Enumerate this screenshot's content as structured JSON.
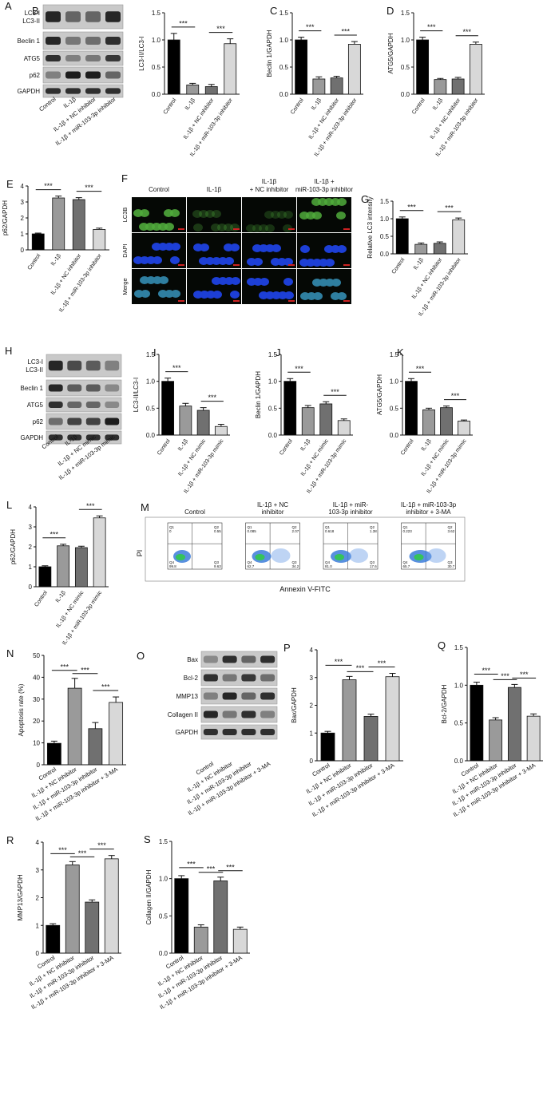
{
  "panels": {
    "A": {
      "label": "A",
      "bands": [
        "LC3-I\nLC3-II",
        "Beclin 1",
        "ATG5",
        "p62",
        "GAPDH"
      ],
      "lanes": [
        "Control",
        "IL-1β",
        "IL-1β + NC inhibitor",
        "IL-1β + miR-103-3p inhibitor"
      ]
    },
    "F": {
      "label": "F",
      "columns": [
        "Control",
        "IL-1β",
        "IL-1β\n+ NC inhibitor",
        "IL-1β +\nmiR-103-3p inhibitor"
      ],
      "rows": [
        "LC3B",
        "DAPI",
        "Merge"
      ]
    },
    "H": {
      "label": "H",
      "bands": [
        "LC3-I\nLC3-II",
        "Beclin 1",
        "ATG5",
        "p62",
        "GAPDH"
      ],
      "lanes": [
        "Control",
        "IL-1β",
        "IL-1β + NC mimic",
        "IL-1β + miR-103-3p mimic"
      ]
    },
    "M": {
      "label": "M",
      "columns": [
        "Control",
        "IL-1β + NC\ninhibitor",
        "IL-1β + miR-\n103-3p inhibitor",
        "IL-1β + miR-103-3p\ninhibitor + 3-MA"
      ],
      "ylabel": "PI",
      "xlabel": "Annexin V-FITC",
      "quadrants": [
        [
          "0",
          "0.55",
          "99.8",
          "9.63"
        ],
        [
          "0.085",
          "2.07",
          "62.7",
          "34.2"
        ],
        [
          "0.618",
          "1.38",
          "81.0",
          "17.6"
        ],
        [
          "0.223",
          "3.62",
          "65.7",
          "30.7"
        ]
      ]
    },
    "O": {
      "label": "O",
      "bands": [
        "Bax",
        "Bcl-2",
        "MMP13",
        "Collagen II",
        "GAPDH"
      ],
      "lanes": [
        "Control",
        "IL-1β + NC inhibitor",
        "IL-1β + miR-103-3p inhibitor",
        "IL-1β + miR-103-3p inhibitor + 3-MA"
      ]
    }
  },
  "sig_label": "***",
  "chart_data": [
    {
      "id": "B",
      "type": "bar",
      "ylabel": "LC3-II/LC3-I",
      "ylim": [
        0,
        1.5
      ],
      "ticks": [
        "0.0",
        "0.5",
        "1.0",
        "1.5"
      ],
      "categories": [
        "Control",
        "IL-1β",
        "IL-1β + NC inhibitor",
        "IL-1β + miR-103-3p inhibitor"
      ],
      "values": [
        1.0,
        0.17,
        0.14,
        0.93
      ],
      "errors": [
        0.12,
        0.03,
        0.04,
        0.09
      ]
    },
    {
      "id": "C",
      "type": "bar",
      "ylabel": "Beclin 1/GAPDH",
      "ylim": [
        0,
        1.5
      ],
      "ticks": [
        "0.0",
        "0.5",
        "1.0",
        "1.5"
      ],
      "categories": [
        "Control",
        "IL-1β",
        "IL-1β + NC inhibitor",
        "IL-1β + miR-103-3p inhibitor"
      ],
      "values": [
        1.0,
        0.28,
        0.3,
        0.92
      ],
      "errors": [
        0.05,
        0.04,
        0.03,
        0.05
      ]
    },
    {
      "id": "D",
      "type": "bar",
      "ylabel": "ATG5/GAPDH",
      "ylim": [
        0,
        1.5
      ],
      "ticks": [
        "0.0",
        "0.5",
        "1.0",
        "1.5"
      ],
      "categories": [
        "Control",
        "IL-1β",
        "IL-1β + NC inhibitor",
        "IL-1β + miR-103-3p inhibitor"
      ],
      "values": [
        1.0,
        0.27,
        0.28,
        0.92
      ],
      "errors": [
        0.05,
        0.02,
        0.03,
        0.04
      ]
    },
    {
      "id": "E",
      "type": "bar",
      "ylabel": "p62/GAPDH",
      "ylim": [
        0,
        4
      ],
      "ticks": [
        "0",
        "1",
        "2",
        "3",
        "4"
      ],
      "categories": [
        "Control",
        "IL-1β",
        "IL-1β + NC inhibitor",
        "IL-1β + miR-103-3p inhibitor"
      ],
      "values": [
        1.0,
        3.25,
        3.15,
        1.28
      ],
      "errors": [
        0.05,
        0.12,
        0.12,
        0.08
      ]
    },
    {
      "id": "G",
      "type": "bar",
      "ylabel": "Relative LC3 intensity",
      "ylim": [
        0,
        1.5
      ],
      "ticks": [
        "0.0",
        "0.5",
        "1.0",
        "1.5"
      ],
      "categories": [
        "Control",
        "IL-1β",
        "IL-1β + NC inhibitor",
        "IL-1β + miR-103-3p inhibitor"
      ],
      "values": [
        1.0,
        0.27,
        0.3,
        0.97
      ],
      "errors": [
        0.05,
        0.04,
        0.04,
        0.05
      ]
    },
    {
      "id": "I",
      "type": "bar",
      "ylabel": "LC3-II/LC3-I",
      "ylim": [
        0,
        1.5
      ],
      "ticks": [
        "0.0",
        "0.5",
        "1.0",
        "1.5"
      ],
      "categories": [
        "Control",
        "IL-1β",
        "IL-1β + NC mimic",
        "IL-1β + miR-103-3p mimic"
      ],
      "values": [
        1.0,
        0.54,
        0.46,
        0.16
      ],
      "errors": [
        0.06,
        0.05,
        0.05,
        0.04
      ]
    },
    {
      "id": "J",
      "type": "bar",
      "ylabel": "Beclin 1/GAPDH",
      "ylim": [
        0,
        1.5
      ],
      "ticks": [
        "0.0",
        "0.5",
        "1.0",
        "1.5"
      ],
      "categories": [
        "Control",
        "IL-1β",
        "IL-1β + NC mimic",
        "IL-1β + miR-103-3p mimic"
      ],
      "values": [
        1.0,
        0.51,
        0.58,
        0.27
      ],
      "errors": [
        0.05,
        0.04,
        0.04,
        0.03
      ]
    },
    {
      "id": "K",
      "type": "bar",
      "ylabel": "ATG5/GAPDH",
      "ylim": [
        0,
        1.5
      ],
      "ticks": [
        "0.0",
        "0.5",
        "1.0",
        "1.5"
      ],
      "categories": [
        "Control",
        "IL-1β",
        "IL-1β + NC mimic",
        "IL-1β + miR-103-3p mimic"
      ],
      "values": [
        1.0,
        0.47,
        0.51,
        0.26
      ],
      "errors": [
        0.05,
        0.03,
        0.03,
        0.02
      ]
    },
    {
      "id": "L",
      "type": "bar",
      "ylabel": "p62/GAPDH",
      "ylim": [
        0,
        4
      ],
      "ticks": [
        "0",
        "1",
        "2",
        "3",
        "4"
      ],
      "categories": [
        "Control",
        "IL-1β",
        "IL-1β + NC mimic",
        "IL-1β + miR-103-3p mimic"
      ],
      "values": [
        1.0,
        2.05,
        1.96,
        3.45
      ],
      "errors": [
        0.05,
        0.08,
        0.07,
        0.1
      ]
    },
    {
      "id": "N",
      "type": "bar",
      "ylabel": "Apoptosis rate (%)",
      "ylim": [
        0,
        50
      ],
      "ticks": [
        "0",
        "10",
        "20",
        "30",
        "40",
        "50"
      ],
      "categories": [
        "Control",
        "IL-1β + NC inhibitor",
        "IL-1β + miR-103-3p inhibitor",
        "IL-1β + miR-103-3p inhibitor + 3-MA"
      ],
      "values": [
        9.8,
        35,
        16.5,
        28.5
      ],
      "errors": [
        1.0,
        4.5,
        2.8,
        2.5
      ]
    },
    {
      "id": "P",
      "type": "bar",
      "ylabel": "Bax/GAPDH",
      "ylim": [
        0,
        4
      ],
      "ticks": [
        "0",
        "1",
        "2",
        "3",
        "4"
      ],
      "categories": [
        "Control",
        "IL-1β + NC inhibitor",
        "IL-1β + miR-103-3p inhibitor",
        "IL-1β + miR-103-3p inhibitor + 3-MA"
      ],
      "values": [
        1.0,
        2.92,
        1.6,
        3.03
      ],
      "errors": [
        0.06,
        0.12,
        0.08,
        0.12
      ]
    },
    {
      "id": "Q",
      "type": "bar",
      "ylabel": "Bcl-2/GAPDH",
      "ylim": [
        0,
        1.5
      ],
      "ticks": [
        "0.0",
        "0.5",
        "1.0",
        "1.5"
      ],
      "categories": [
        "Control",
        "IL-1β + NC inhibitor",
        "IL-1β + miR-103-3p inhibitor",
        "IL-1β + miR-103-3p inhibitor + 3-MA"
      ],
      "values": [
        1.0,
        0.54,
        0.97,
        0.59
      ],
      "errors": [
        0.04,
        0.03,
        0.04,
        0.03
      ]
    },
    {
      "id": "R",
      "type": "bar",
      "ylabel": "MMP13/GAPDH",
      "ylim": [
        0,
        4
      ],
      "ticks": [
        "0",
        "1",
        "2",
        "3",
        "4"
      ],
      "categories": [
        "Control",
        "IL-1β + NC inhibitor",
        "IL-1β + miR-103-3p inhibitor",
        "IL-1β + miR-103-3p inhibitor + 3-MA"
      ],
      "values": [
        1.0,
        3.18,
        1.84,
        3.4
      ],
      "errors": [
        0.06,
        0.12,
        0.08,
        0.12
      ]
    },
    {
      "id": "S",
      "type": "bar",
      "ylabel": "Collagen II/GAPDH",
      "ylim": [
        0,
        1.5
      ],
      "ticks": [
        "0.0",
        "0.5",
        "1.0",
        "1.5"
      ],
      "categories": [
        "Control",
        "IL-1β + NC inhibitor",
        "IL-1β + miR-103-3p inhibitor",
        "IL-1β + miR-103-3p inhibitor + 3-MA"
      ],
      "values": [
        1.0,
        0.35,
        0.97,
        0.32
      ],
      "errors": [
        0.04,
        0.03,
        0.05,
        0.03
      ]
    }
  ]
}
